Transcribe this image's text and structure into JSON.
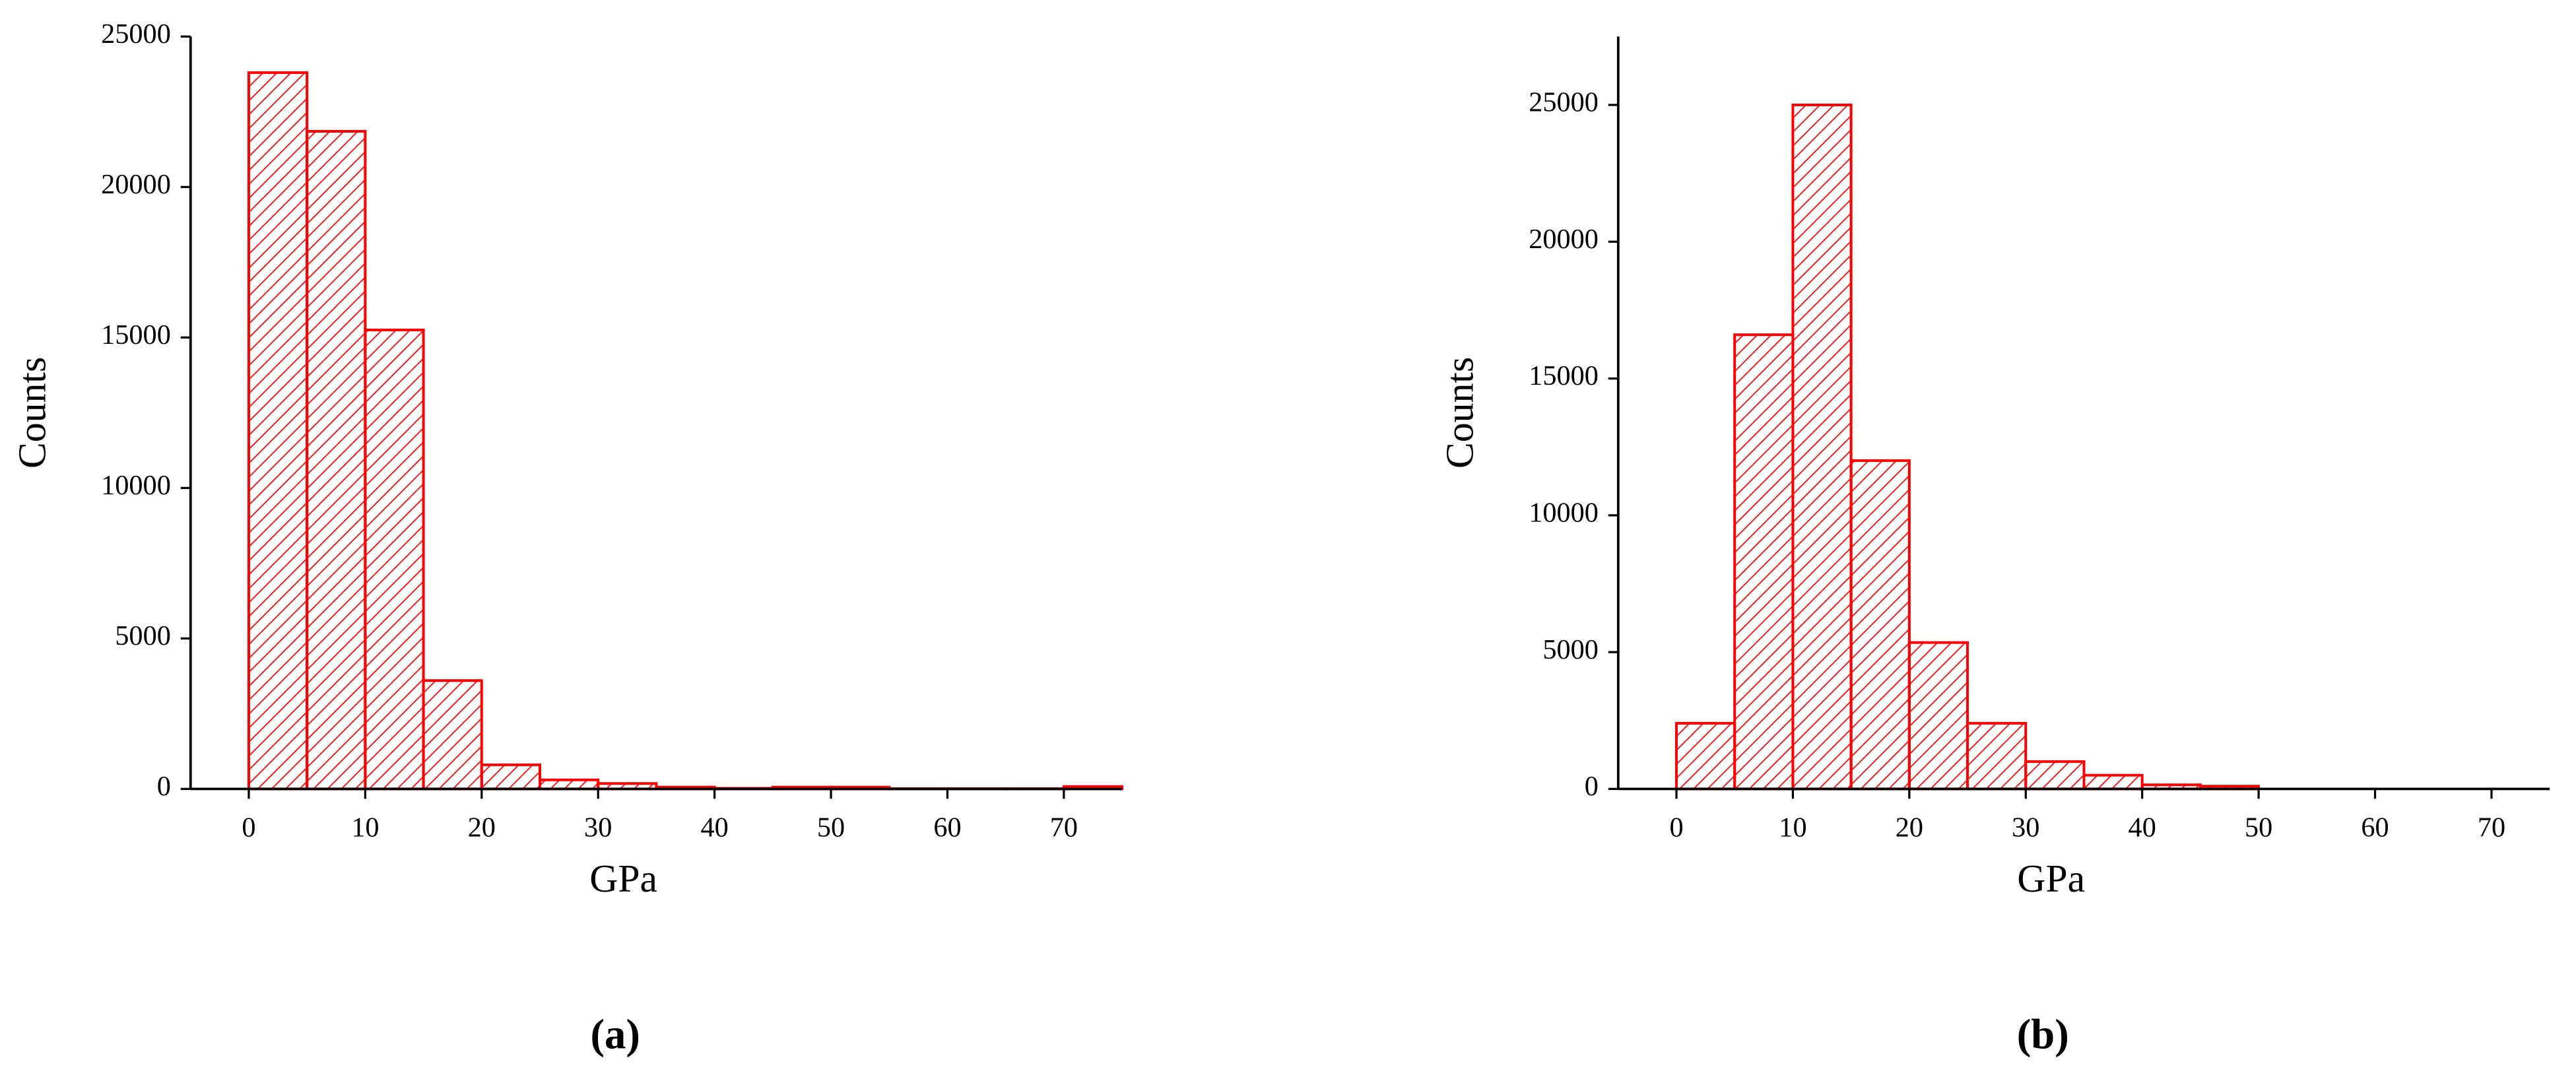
{
  "chart_data": [
    {
      "type": "histogram",
      "caption": "(a)",
      "x_label": "GPa",
      "y_label": "Counts",
      "color": "#ff0000",
      "bins": [
        0,
        5,
        10,
        15,
        20,
        25,
        30,
        35,
        40,
        45,
        50,
        55,
        60,
        65,
        70,
        75
      ],
      "values": [
        23800,
        21850,
        15250,
        3600,
        800,
        300,
        180,
        60,
        20,
        60,
        60,
        10,
        10,
        10,
        80
      ],
      "xlim": [
        -5,
        75
      ],
      "ylim": [
        0,
        25000
      ],
      "xticks": [
        0,
        10,
        20,
        30,
        40,
        50,
        60,
        70
      ],
      "yticks": [
        0,
        5000,
        10000,
        15000,
        20000,
        25000
      ]
    },
    {
      "type": "histogram",
      "caption": "(b)",
      "x_label": "GPa",
      "y_label": "Counts",
      "color": "#ff0000",
      "bins": [
        0,
        5,
        10,
        15,
        20,
        25,
        30,
        35,
        40,
        45,
        50
      ],
      "values": [
        2400,
        16600,
        25000,
        12000,
        5350,
        2400,
        1000,
        500,
        150,
        100
      ],
      "xlim": [
        -5,
        75
      ],
      "ylim": [
        0,
        27500
      ],
      "xticks": [
        0,
        10,
        20,
        30,
        40,
        50,
        60,
        70
      ],
      "yticks": [
        0,
        5000,
        10000,
        15000,
        20000,
        25000
      ]
    }
  ]
}
